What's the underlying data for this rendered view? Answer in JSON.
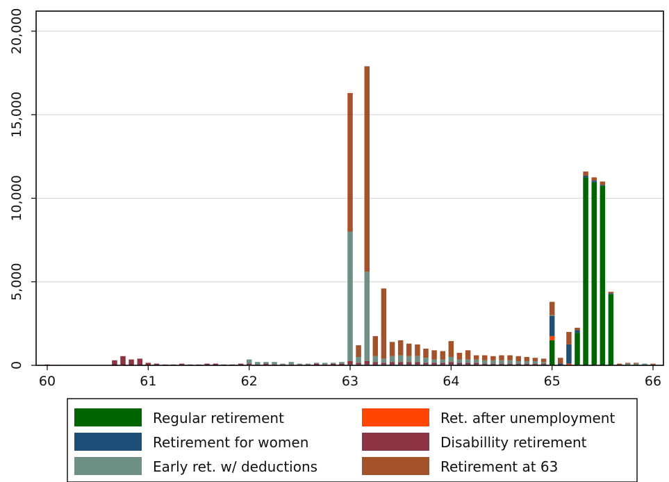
{
  "chart_data": {
    "type": "bar",
    "stacked": true,
    "title": "",
    "xlabel": "",
    "ylabel": "",
    "xlim": [
      60,
      66
    ],
    "ylim": [
      0,
      21200
    ],
    "bin_width_years": 0.08333,
    "x_ticks": [
      60,
      61,
      62,
      63,
      64,
      65,
      66
    ],
    "x_tick_labels": [
      "60",
      "61",
      "62",
      "63",
      "64",
      "65",
      "66"
    ],
    "y_ticks": [
      0,
      5000,
      10000,
      15000,
      20000
    ],
    "y_tick_labels": [
      "0",
      "5,000",
      "10,000",
      "15,000",
      "20,000"
    ],
    "grid": true,
    "legend_position": "bottom",
    "x": [
      60.0,
      60.083,
      60.167,
      60.25,
      60.333,
      60.417,
      60.5,
      60.583,
      60.667,
      60.75,
      60.833,
      60.917,
      61.0,
      61.083,
      61.167,
      61.25,
      61.333,
      61.417,
      61.5,
      61.583,
      61.667,
      61.75,
      61.833,
      61.917,
      62.0,
      62.083,
      62.167,
      62.25,
      62.333,
      62.417,
      62.5,
      62.583,
      62.667,
      62.75,
      62.833,
      62.917,
      63.0,
      63.083,
      63.167,
      63.25,
      63.333,
      63.417,
      63.5,
      63.583,
      63.667,
      63.75,
      63.833,
      63.917,
      64.0,
      64.083,
      64.167,
      64.25,
      64.333,
      64.417,
      64.5,
      64.583,
      64.667,
      64.75,
      64.833,
      64.917,
      65.0,
      65.083,
      65.167,
      65.25,
      65.333,
      65.417,
      65.5,
      65.583,
      65.667,
      65.75,
      65.833,
      65.917,
      66.0
    ],
    "series": [
      {
        "name": "Regular retirement",
        "color": "#006400",
        "values": [
          0,
          0,
          0,
          0,
          0,
          0,
          0,
          0,
          0,
          0,
          0,
          0,
          0,
          0,
          0,
          0,
          0,
          0,
          0,
          0,
          0,
          0,
          0,
          0,
          0,
          0,
          0,
          0,
          0,
          0,
          0,
          0,
          0,
          0,
          0,
          0,
          0,
          0,
          0,
          0,
          0,
          0,
          0,
          0,
          0,
          0,
          0,
          0,
          0,
          0,
          0,
          0,
          0,
          0,
          0,
          0,
          0,
          0,
          0,
          0,
          1500,
          0,
          0,
          1950,
          11250,
          10950,
          10750,
          4250,
          0,
          0,
          0,
          0,
          0
        ]
      },
      {
        "name": "Ret. after unemployment",
        "color": "#ff4500",
        "values": [
          0,
          0,
          0,
          0,
          0,
          0,
          0,
          0,
          0,
          0,
          0,
          0,
          0,
          0,
          0,
          0,
          0,
          0,
          0,
          0,
          0,
          0,
          0,
          0,
          0,
          0,
          0,
          0,
          0,
          0,
          0,
          0,
          0,
          0,
          0,
          0,
          0,
          0,
          0,
          0,
          0,
          0,
          0,
          0,
          0,
          0,
          0,
          0,
          0,
          0,
          0,
          0,
          0,
          0,
          0,
          0,
          0,
          0,
          0,
          0,
          250,
          0,
          100,
          0,
          0,
          0,
          0,
          0,
          0,
          0,
          0,
          0,
          0
        ]
      },
      {
        "name": "Retirement for women",
        "color": "#1f4e79",
        "values": [
          0,
          0,
          0,
          0,
          0,
          0,
          0,
          0,
          0,
          0,
          0,
          0,
          0,
          0,
          0,
          0,
          0,
          0,
          0,
          0,
          0,
          0,
          0,
          0,
          0,
          0,
          0,
          0,
          0,
          0,
          0,
          0,
          0,
          0,
          0,
          0,
          50,
          50,
          50,
          50,
          50,
          50,
          50,
          50,
          50,
          50,
          50,
          50,
          50,
          50,
          50,
          50,
          50,
          50,
          50,
          50,
          50,
          50,
          50,
          50,
          1200,
          100,
          1150,
          150,
          100,
          100,
          50,
          50,
          0,
          0,
          0,
          0,
          0
        ]
      },
      {
        "name": "Disabillity retirement",
        "color": "#8c3442",
        "values": [
          50,
          0,
          0,
          0,
          0,
          0,
          0,
          0,
          300,
          550,
          350,
          400,
          150,
          100,
          50,
          50,
          100,
          50,
          50,
          100,
          100,
          50,
          50,
          100,
          100,
          50,
          100,
          50,
          50,
          50,
          50,
          50,
          100,
          50,
          100,
          100,
          200,
          100,
          200,
          150,
          100,
          150,
          150,
          150,
          150,
          100,
          100,
          100,
          150,
          100,
          100,
          100,
          50,
          50,
          50,
          50,
          50,
          50,
          50,
          50,
          0,
          0,
          0,
          0,
          0,
          0,
          0,
          0,
          0,
          0,
          0,
          0,
          0
        ]
      },
      {
        "name": "Early ret. w/ deductions",
        "color": "#6e8f83",
        "values": [
          0,
          0,
          0,
          0,
          0,
          0,
          0,
          0,
          0,
          0,
          0,
          0,
          0,
          0,
          0,
          0,
          0,
          0,
          0,
          0,
          0,
          0,
          0,
          0,
          250,
          150,
          100,
          150,
          50,
          150,
          50,
          50,
          50,
          100,
          50,
          100,
          7750,
          350,
          5350,
          350,
          250,
          350,
          400,
          350,
          350,
          300,
          200,
          200,
          300,
          200,
          200,
          200,
          200,
          200,
          200,
          200,
          150,
          150,
          150,
          100,
          50,
          0,
          0,
          0,
          0,
          0,
          0,
          0,
          0,
          100,
          100,
          100,
          50
        ]
      },
      {
        "name": "Retirement at 63",
        "color": "#a4522a",
        "values": [
          0,
          0,
          0,
          0,
          0,
          0,
          0,
          0,
          0,
          0,
          0,
          0,
          0,
          0,
          0,
          0,
          0,
          0,
          0,
          0,
          0,
          0,
          0,
          0,
          0,
          0,
          0,
          0,
          0,
          0,
          0,
          0,
          0,
          0,
          0,
          0,
          8300,
          700,
          12300,
          1200,
          4200,
          850,
          900,
          750,
          700,
          550,
          550,
          500,
          950,
          400,
          550,
          250,
          300,
          250,
          300,
          300,
          300,
          250,
          200,
          200,
          800,
          350,
          750,
          150,
          250,
          200,
          200,
          100,
          100,
          50,
          50,
          0,
          50
        ]
      }
    ]
  }
}
